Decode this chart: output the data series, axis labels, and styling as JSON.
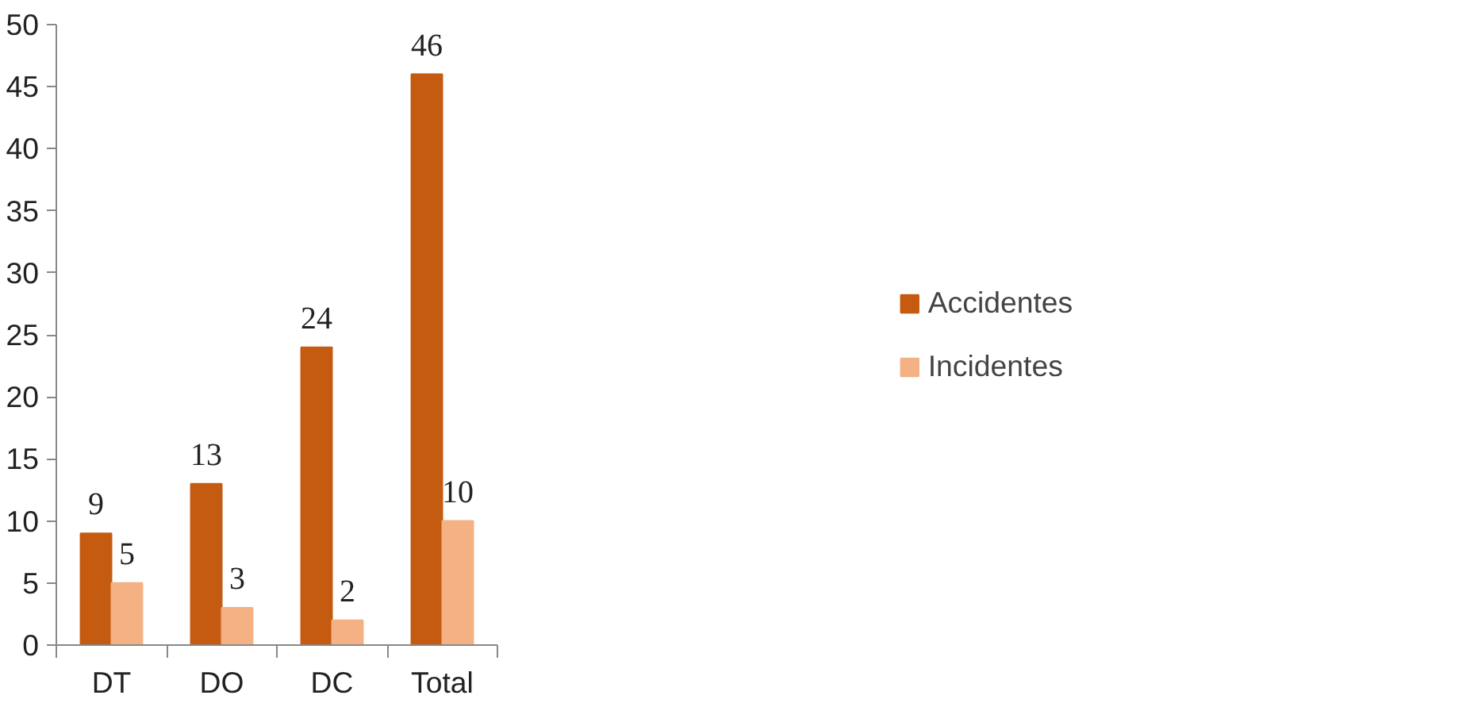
{
  "chart_data": {
    "type": "bar",
    "categories": [
      "DT",
      "DO",
      "DC",
      "Total"
    ],
    "series": [
      {
        "name": "Accidentes",
        "color": "#c55a11",
        "values": [
          9,
          13,
          24,
          46
        ]
      },
      {
        "name": "Incidentes",
        "color": "#f4b183",
        "values": [
          5,
          3,
          2,
          10
        ]
      }
    ],
    "ylim": [
      0,
      50
    ],
    "yticks": [
      0,
      5,
      10,
      15,
      20,
      25,
      30,
      35,
      40,
      45,
      50
    ],
    "grid": false,
    "legend": "right",
    "data_labels": true
  }
}
